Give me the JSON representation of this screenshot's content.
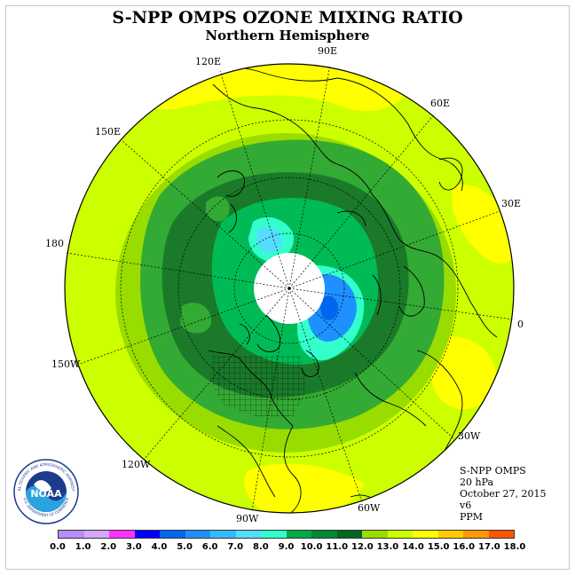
{
  "title": "S-NPP OMPS OZONE MIXING RATIO",
  "subtitle": "Northern Hemisphere",
  "longitude_labels": [
    {
      "id": "lon-90e",
      "text": "90E"
    },
    {
      "id": "lon-120e",
      "text": "120E"
    },
    {
      "id": "lon-60e",
      "text": "60E"
    },
    {
      "id": "lon-150e",
      "text": "150E"
    },
    {
      "id": "lon-30e",
      "text": "30E"
    },
    {
      "id": "lon-180",
      "text": "180"
    },
    {
      "id": "lon-0",
      "text": "0"
    },
    {
      "id": "lon-150w",
      "text": "150W"
    },
    {
      "id": "lon-30w",
      "text": "30W"
    },
    {
      "id": "lon-120w",
      "text": "120W"
    },
    {
      "id": "lon-60w",
      "text": "60W"
    },
    {
      "id": "lon-90w",
      "text": "90W"
    }
  ],
  "info": {
    "instrument": "S-NPP OMPS",
    "level": "20 hPa",
    "date": "October 27, 2015",
    "version": "v6",
    "units": "PPM"
  },
  "logo": {
    "text": "NOAA",
    "ring_text": "NATIONAL OCEANIC AND ATMOSPHERIC ADMINISTRATION",
    "ring_text_bottom": "U.S. DEPARTMENT OF COMMERCE"
  },
  "colorbar": {
    "ticks": [
      "0.0",
      "1.0",
      "2.0",
      "3.0",
      "4.0",
      "5.0",
      "6.0",
      "7.0",
      "8.0",
      "9.0",
      "10.0",
      "11.0",
      "12.0",
      "13.0",
      "14.0",
      "15.0",
      "16.0",
      "17.0",
      "18.0"
    ],
    "colors": [
      "#b88cff",
      "#d7a6ff",
      "#ff33ff",
      "#0000ff",
      "#0066ee",
      "#1e90ff",
      "#33bbff",
      "#55ddff",
      "#33ffcc",
      "#00aa44",
      "#008833",
      "#006622",
      "#99dd00",
      "#ccff00",
      "#ffff00",
      "#ffcc00",
      "#ff9900",
      "#ff5500",
      "#ff0000",
      "#8b4513"
    ]
  },
  "map_colors": {
    "outer": "#ccff00",
    "band_11": "#99dd00",
    "band_10": "#33aa33",
    "band_9": "#1a7a2a",
    "band_8": "#00bb55",
    "cyan": "#33ffcc",
    "light_cyan": "#55ddff",
    "blue": "#1e90ff",
    "dark_blue": "#0066ee",
    "high": "#ffff00",
    "pole_hole": "#ffffff"
  }
}
